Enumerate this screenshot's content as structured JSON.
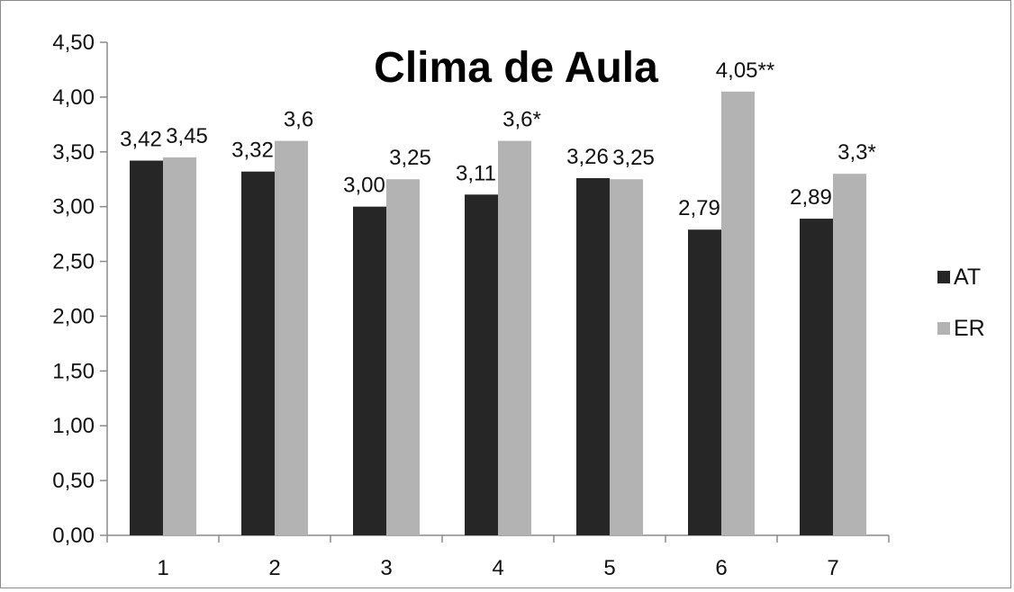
{
  "chart_data": {
    "type": "bar",
    "title": "Clima de Aula",
    "categories": [
      "1",
      "2",
      "3",
      "4",
      "5",
      "6",
      "7"
    ],
    "series": [
      {
        "name": "AT",
        "color": "#262626",
        "values": [
          3.42,
          3.32,
          3.0,
          3.11,
          3.26,
          2.79,
          2.89
        ],
        "labels": [
          "3,42",
          "3,32",
          "3,00",
          "3,11",
          "3,26",
          "2,79",
          "2,89"
        ]
      },
      {
        "name": "ER",
        "color": "#b3b3b3",
        "values": [
          3.45,
          3.6,
          3.25,
          3.6,
          3.25,
          4.05,
          3.3
        ],
        "labels": [
          "3,45",
          "3,6",
          "3,25",
          "3,6*",
          "3,25",
          "4,05**",
          "3,3*"
        ]
      }
    ],
    "ylim": [
      0,
      4.5
    ],
    "yticks": [
      "0,00",
      "0,50",
      "1,00",
      "1,50",
      "2,00",
      "2,50",
      "3,00",
      "3,50",
      "4,00",
      "4,50"
    ],
    "grid": false,
    "legend_position": "right"
  }
}
